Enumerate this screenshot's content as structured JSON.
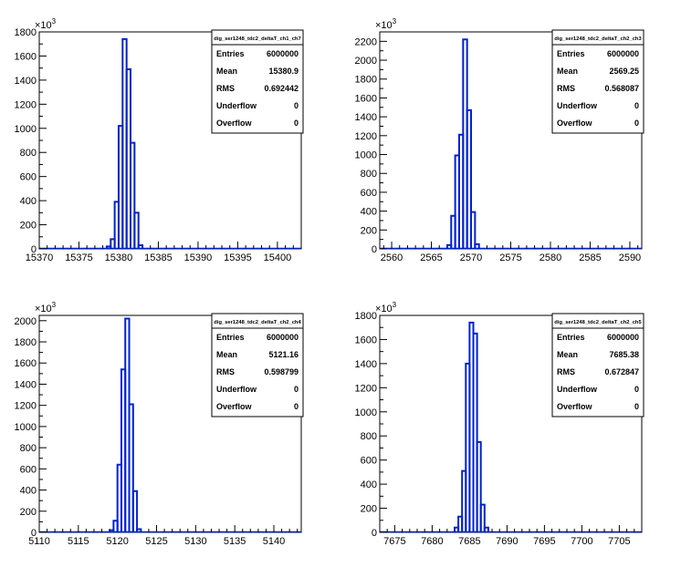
{
  "exponent_label": "×10",
  "exponent_power": "3",
  "stats_labels": [
    "Entries",
    "Mean",
    "RMS",
    "Underflow",
    "Overflow"
  ],
  "colors": {
    "histogram": "#0022cc",
    "frame": "#000000",
    "background": "#ffffff"
  },
  "chart_data": [
    {
      "type": "histogram",
      "title": "dig_ser1248_tdc2_deltaT_ch1_ch7",
      "xlim": [
        15370,
        15403
      ],
      "ylim": [
        0,
        1800
      ],
      "xticks": [
        15370,
        15375,
        15380,
        15385,
        15390,
        15395,
        15400
      ],
      "yticks": [
        0,
        200,
        400,
        600,
        800,
        1000,
        1200,
        1400,
        1600,
        1800
      ],
      "bin_width": 0.5,
      "bins": [
        [
          15378.5,
          15379.0,
          20
        ],
        [
          15379.0,
          15379.5,
          80
        ],
        [
          15379.5,
          15380.0,
          390
        ],
        [
          15380.0,
          15380.5,
          1020
        ],
        [
          15380.5,
          15381.0,
          1740
        ],
        [
          15381.0,
          15381.5,
          1490
        ],
        [
          15381.5,
          15382.0,
          880
        ],
        [
          15382.0,
          15382.5,
          300
        ],
        [
          15382.5,
          15383.0,
          30
        ]
      ],
      "stats": {
        "Entries": "6000000",
        "Mean": "15380.9",
        "RMS": "0.692442",
        "Underflow": "0",
        "Overflow": "0"
      }
    },
    {
      "type": "histogram",
      "title": "dig_ser1248_tdc2_deltaT_ch2_ch3",
      "xlim": [
        2558.5,
        2591.5
      ],
      "ylim": [
        0,
        2300
      ],
      "xticks": [
        2560,
        2565,
        2570,
        2575,
        2580,
        2585,
        2590
      ],
      "yticks": [
        0,
        200,
        400,
        600,
        800,
        1000,
        1200,
        1400,
        1600,
        1800,
        2000,
        2200
      ],
      "bin_width": 0.5,
      "bins": [
        [
          2567.0,
          2567.5,
          40
        ],
        [
          2567.5,
          2568.0,
          350
        ],
        [
          2568.0,
          2568.5,
          990
        ],
        [
          2568.5,
          2569.0,
          1210
        ],
        [
          2569.0,
          2569.5,
          2220
        ],
        [
          2569.5,
          2570.0,
          1470
        ],
        [
          2570.0,
          2570.5,
          390
        ],
        [
          2570.5,
          2571.0,
          50
        ]
      ],
      "stats": {
        "Entries": "6000000",
        "Mean": "2569.25",
        "RMS": "0.568087",
        "Underflow": "0",
        "Overflow": "0"
      }
    },
    {
      "type": "histogram",
      "title": "dig_ser1248_tdc2_deltaT_ch2_ch4",
      "xlim": [
        5110,
        5143.5
      ],
      "ylim": [
        0,
        2050
      ],
      "xticks": [
        5110,
        5115,
        5120,
        5125,
        5130,
        5135,
        5140
      ],
      "yticks": [
        0,
        200,
        400,
        600,
        800,
        1000,
        1200,
        1400,
        1600,
        1800,
        2000
      ],
      "bin_width": 0.5,
      "bins": [
        [
          5119.0,
          5119.5,
          20
        ],
        [
          5119.5,
          5120.0,
          110
        ],
        [
          5120.0,
          5120.5,
          640
        ],
        [
          5120.5,
          5121.0,
          1540
        ],
        [
          5121.0,
          5121.5,
          2020
        ],
        [
          5121.5,
          5122.0,
          1210
        ],
        [
          5122.0,
          5122.5,
          390
        ],
        [
          5122.5,
          5123.0,
          30
        ]
      ],
      "stats": {
        "Entries": "6000000",
        "Mean": "5121.16",
        "RMS": "0.598799",
        "Underflow": "0",
        "Overflow": "0"
      }
    },
    {
      "type": "histogram",
      "title": "dig_ser1248_tdc2_deltaT_ch2_ch5",
      "xlim": [
        7673,
        7708
      ],
      "ylim": [
        0,
        1800
      ],
      "xticks": [
        7675,
        7680,
        7685,
        7690,
        7695,
        7700,
        7705
      ],
      "yticks": [
        0,
        200,
        400,
        600,
        800,
        1000,
        1200,
        1400,
        1600,
        1800
      ],
      "bin_width": 0.5,
      "bins": [
        [
          7683.0,
          7683.5,
          40
        ],
        [
          7683.5,
          7684.0,
          130
        ],
        [
          7684.0,
          7684.5,
          510
        ],
        [
          7684.5,
          7685.0,
          1400
        ],
        [
          7685.0,
          7685.5,
          1740
        ],
        [
          7685.5,
          7686.0,
          1650
        ],
        [
          7686.0,
          7686.5,
          750
        ],
        [
          7686.5,
          7687.0,
          230
        ],
        [
          7687.0,
          7687.5,
          40
        ]
      ],
      "stats": {
        "Entries": "6000000",
        "Mean": "7685.38",
        "RMS": "0.672847",
        "Underflow": "0",
        "Overflow": "0"
      }
    }
  ]
}
